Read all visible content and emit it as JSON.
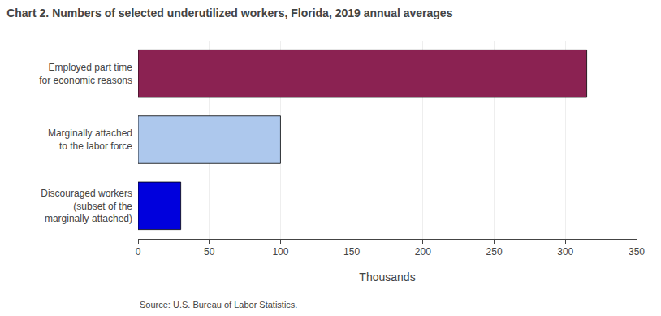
{
  "chart_data": {
    "type": "bar",
    "orientation": "horizontal",
    "title": "Chart 2. Numbers of selected underutilized workers, Florida, 2019 annual averages",
    "categories": [
      "Discouraged workers\n(subset of the\nmarginally attached)",
      "Marginally attached\nto the labor force",
      "Employed part time\nfor economic reasons"
    ],
    "values": [
      30,
      100,
      315
    ],
    "colors": [
      "#0000dd",
      "#adc8ed",
      "#8b2252"
    ],
    "xlabel": "Thousands",
    "xlim": [
      0,
      350
    ],
    "xticks": [
      0,
      50,
      100,
      150,
      200,
      250,
      300,
      350
    ],
    "grid": true,
    "annotations": [
      "Source: U.S. Bureau of Labor Statistics."
    ]
  }
}
